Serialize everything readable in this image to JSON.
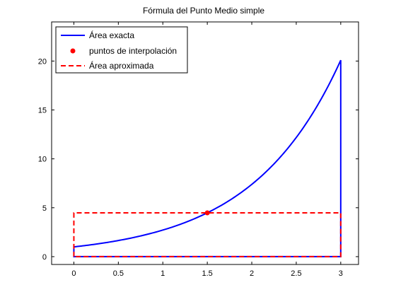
{
  "chart_data": {
    "type": "line",
    "title": "Fórmula del Punto Medio simple",
    "xlabel": "",
    "ylabel": "",
    "xlim": [
      -0.25,
      3.2
    ],
    "ylim": [
      -0.8,
      24
    ],
    "xticks": [
      0,
      0.5,
      1,
      1.5,
      2,
      2.5,
      3
    ],
    "xtick_labels": [
      "0",
      "0.5",
      "1",
      "1.5",
      "2",
      "2.5",
      "3"
    ],
    "yticks": [
      0,
      5,
      10,
      15,
      20
    ],
    "ytick_labels": [
      "0",
      "5",
      "10",
      "15",
      "20"
    ],
    "grid": false,
    "legend_position": "top-left",
    "series": [
      {
        "name": "Área exacta",
        "style": "solid",
        "color": "#0000ff",
        "function": "exp(x)",
        "x": [
          0,
          0.25,
          0.5,
          0.75,
          1,
          1.25,
          1.5,
          1.75,
          2,
          2.25,
          2.5,
          2.75,
          3
        ],
        "y": [
          1.0,
          1.28,
          1.65,
          2.12,
          2.72,
          3.49,
          4.48,
          5.75,
          7.39,
          9.49,
          12.18,
          15.64,
          20.09
        ],
        "region_outline": true
      },
      {
        "name": "puntos de interpolación",
        "style": "marker",
        "color": "#ff0000",
        "x": [
          1.5
        ],
        "y": [
          4.48
        ]
      },
      {
        "name": "Área aproximada",
        "style": "dashed",
        "color": "#ff0000",
        "x": [
          0,
          0,
          3,
          3,
          0
        ],
        "y": [
          0,
          4.48,
          4.48,
          0,
          0
        ]
      }
    ]
  }
}
